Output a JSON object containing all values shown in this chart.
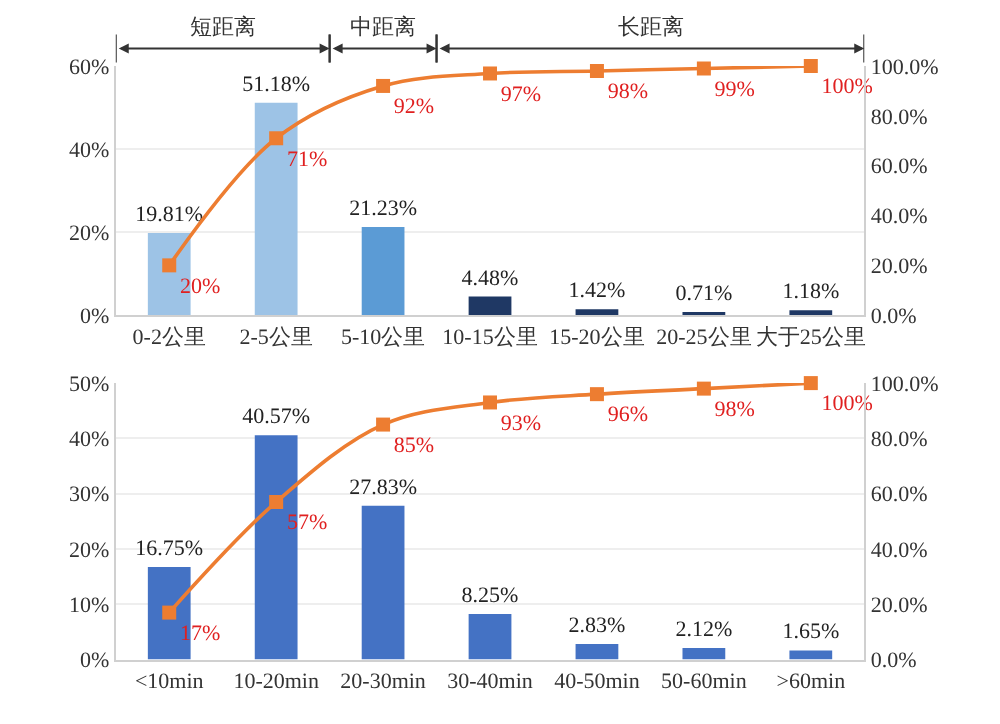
{
  "chart_data": [
    {
      "type": "bar",
      "categories": [
        "0-2公里",
        "2-5公里",
        "5-10公里",
        "10-15公里",
        "15-20公里",
        "20-25公里",
        "大于25公里"
      ],
      "series": [
        {
          "colors": [
            "#9dc3e6",
            "#9dc3e6",
            "#5b9bd5",
            "#1f3864",
            "#1f3864",
            "#1f3864",
            "#1f3864"
          ],
          "values": [
            19.81,
            51.18,
            21.23,
            4.48,
            1.42,
            0.71,
            1.18
          ],
          "value_labels": [
            "19.81%",
            "51.18%",
            "21.23%",
            "4.48%",
            "1.42%",
            "0.71%",
            "1.18%"
          ]
        },
        {
          "type": "line",
          "axis": "y2",
          "color": "#ed7d31",
          "marker": "square",
          "values": [
            20,
            71,
            92,
            97,
            98,
            99,
            100
          ],
          "value_labels": [
            "20%",
            "71%",
            "92%",
            "97%",
            "98%",
            "99%",
            "100%"
          ]
        }
      ],
      "ylim": [
        0,
        60
      ],
      "yticks": [
        {
          "value": 0,
          "label": "0%"
        },
        {
          "value": 20,
          "label": "20%"
        },
        {
          "value": 40,
          "label": "40%"
        },
        {
          "value": 60,
          "label": "60%"
        }
      ],
      "y2lim": [
        0,
        100
      ],
      "y2ticks": [
        {
          "value": 0,
          "label": "0.0%"
        },
        {
          "value": 20,
          "label": "20.0%"
        },
        {
          "value": 40,
          "label": "40.0%"
        },
        {
          "value": 60,
          "label": "60.0%"
        },
        {
          "value": 80,
          "label": "80.0%"
        },
        {
          "value": 100,
          "label": "100.0%"
        }
      ],
      "grid": "y",
      "annotations": [
        "短距离",
        "中距离",
        "长距离"
      ]
    },
    {
      "type": "bar",
      "categories": [
        "<10min",
        "10-20min",
        "20-30min",
        "30-40min",
        "40-50min",
        "50-60min",
        ">60min"
      ],
      "series": [
        {
          "colors": [
            "#4472c4",
            "#4472c4",
            "#4472c4",
            "#4472c4",
            "#4472c4",
            "#4472c4",
            "#4472c4"
          ],
          "values": [
            16.75,
            40.57,
            27.83,
            8.25,
            2.83,
            2.12,
            1.65
          ],
          "value_labels": [
            "16.75%",
            "40.57%",
            "27.83%",
            "8.25%",
            "2.83%",
            "2.12%",
            "1.65%"
          ]
        },
        {
          "type": "line",
          "axis": "y2",
          "color": "#ed7d31",
          "marker": "square",
          "values": [
            17,
            57,
            85,
            93,
            96,
            98,
            100
          ],
          "value_labels": [
            "17%",
            "57%",
            "85%",
            "93%",
            "96%",
            "98%",
            "100%"
          ]
        }
      ],
      "ylim": [
        0,
        50
      ],
      "yticks": [
        {
          "value": 0,
          "label": "0%"
        },
        {
          "value": 10,
          "label": "10%"
        },
        {
          "value": 20,
          "label": "20%"
        },
        {
          "value": 30,
          "label": "30%"
        },
        {
          "value": 40,
          "label": "40%"
        },
        {
          "value": 50,
          "label": "50%"
        }
      ],
      "y2lim": [
        0,
        100
      ],
      "y2ticks": [
        {
          "value": 0,
          "label": "0.0%"
        },
        {
          "value": 20,
          "label": "20.0%"
        },
        {
          "value": 40,
          "label": "40.0%"
        },
        {
          "value": 60,
          "label": "60.0%"
        },
        {
          "value": 80,
          "label": "80.0%"
        },
        {
          "value": 100,
          "label": "100.0%"
        }
      ],
      "grid": "y"
    }
  ]
}
